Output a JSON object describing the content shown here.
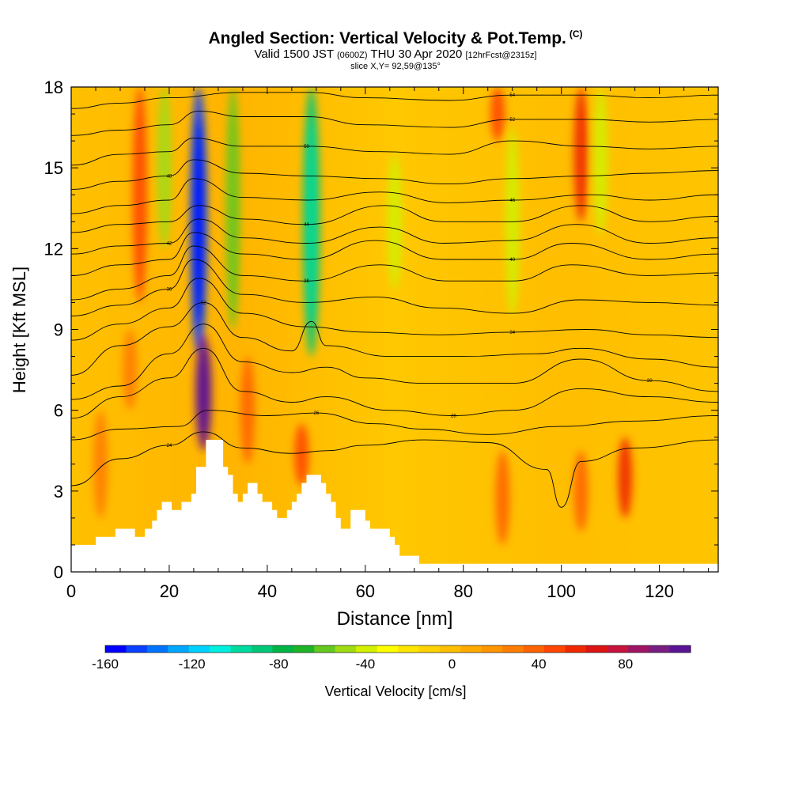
{
  "header": {
    "title": "Angled Section: Vertical Velocity & Pot.Temp.",
    "title_mark": "(C)",
    "valid_a": "Valid 1500 JST",
    "valid_b": "(0600Z)",
    "valid_c": "THU 30 Apr 2020",
    "valid_d": "[12hrFcst@2315z]",
    "slice": "slice X,Y= 92,59@135°"
  },
  "chart_data": {
    "type": "heatmap",
    "xlabel": "Distance [nm]",
    "ylabel": "Height [Kft MSL]",
    "xlim": [
      0,
      132
    ],
    "ylim": [
      0,
      18
    ],
    "x_ticks": [
      "0",
      "20",
      "40",
      "60",
      "80",
      "100",
      "120"
    ],
    "y_ticks": [
      "0",
      "3",
      "6",
      "9",
      "12",
      "15",
      "18"
    ],
    "colorbar": {
      "label": "Vertical Velocity [cm/s]",
      "min": -160,
      "max": 110,
      "tick_labels": [
        "-160",
        "-120",
        "-80",
        "-40",
        "0",
        "40",
        "80"
      ],
      "colors": [
        "#0000ff",
        "#0a40ff",
        "#0074ff",
        "#00a8ff",
        "#00d2ff",
        "#00f0e0",
        "#00dca0",
        "#00c878",
        "#00b446",
        "#1eb428",
        "#64c81e",
        "#a0dc14",
        "#d2f000",
        "#ffff00",
        "#ffe600",
        "#ffd200",
        "#ffbe00",
        "#ffaa00",
        "#ff9600",
        "#ff7d00",
        "#ff6400",
        "#ff4600",
        "#f02800",
        "#dc1414",
        "#c8143c",
        "#a01464",
        "#781e82",
        "#5a1496"
      ]
    },
    "terrain_kft": [
      [
        0,
        1.0
      ],
      [
        5,
        1.0
      ],
      [
        5,
        1.3
      ],
      [
        9,
        1.3
      ],
      [
        9,
        1.6
      ],
      [
        13,
        1.6
      ],
      [
        13,
        1.3
      ],
      [
        15,
        1.3
      ],
      [
        15,
        1.6
      ],
      [
        16.5,
        1.6
      ],
      [
        16.5,
        1.9
      ],
      [
        17.5,
        1.9
      ],
      [
        17.5,
        2.3
      ],
      [
        18.5,
        2.3
      ],
      [
        18.5,
        2.6
      ],
      [
        20.5,
        2.6
      ],
      [
        20.5,
        2.3
      ],
      [
        22.5,
        2.3
      ],
      [
        22.5,
        2.6
      ],
      [
        24.5,
        2.6
      ],
      [
        24.5,
        2.9
      ],
      [
        25.5,
        2.9
      ],
      [
        25.5,
        3.9
      ],
      [
        27.5,
        3.9
      ],
      [
        27.5,
        4.9
      ],
      [
        31,
        4.9
      ],
      [
        31,
        3.9
      ],
      [
        32,
        3.9
      ],
      [
        32,
        3.6
      ],
      [
        33,
        3.6
      ],
      [
        33,
        2.9
      ],
      [
        34,
        2.9
      ],
      [
        34,
        2.6
      ],
      [
        35,
        2.6
      ],
      [
        35,
        2.9
      ],
      [
        36,
        2.9
      ],
      [
        36,
        3.3
      ],
      [
        38,
        3.3
      ],
      [
        38,
        2.9
      ],
      [
        39,
        2.9
      ],
      [
        39,
        2.6
      ],
      [
        41,
        2.6
      ],
      [
        41,
        2.3
      ],
      [
        42,
        2.3
      ],
      [
        42,
        2.0
      ],
      [
        44,
        2.0
      ],
      [
        44,
        2.3
      ],
      [
        45,
        2.3
      ],
      [
        45,
        2.6
      ],
      [
        46,
        2.6
      ],
      [
        46,
        2.9
      ],
      [
        47,
        2.9
      ],
      [
        47,
        3.3
      ],
      [
        48,
        3.3
      ],
      [
        48,
        3.6
      ],
      [
        51,
        3.6
      ],
      [
        51,
        3.3
      ],
      [
        52,
        3.3
      ],
      [
        52,
        2.9
      ],
      [
        53,
        2.9
      ],
      [
        53,
        2.6
      ],
      [
        54,
        2.6
      ],
      [
        54,
        2.0
      ],
      [
        55,
        2.0
      ],
      [
        55,
        1.6
      ],
      [
        57,
        1.6
      ],
      [
        57,
        2.3
      ],
      [
        60,
        2.3
      ],
      [
        60,
        1.9
      ],
      [
        61,
        1.9
      ],
      [
        61,
        1.6
      ],
      [
        65,
        1.6
      ],
      [
        65,
        1.3
      ],
      [
        66,
        1.3
      ],
      [
        66,
        1.0
      ],
      [
        67,
        1.0
      ],
      [
        67,
        0.6
      ],
      [
        71,
        0.6
      ],
      [
        71,
        0.3
      ],
      [
        132,
        0.3
      ]
    ],
    "theta_contours": [
      {
        "label": "24",
        "points": [
          [
            0,
            3.2
          ],
          [
            10,
            4.2
          ],
          [
            20,
            4.7
          ],
          [
            27,
            5.2
          ],
          [
            35,
            4.6
          ],
          [
            45,
            4.4
          ],
          [
            52,
            4.5
          ],
          [
            60,
            4.7
          ],
          [
            72,
            4.9
          ],
          [
            85,
            4.8
          ],
          [
            97,
            3.8
          ],
          [
            100,
            2.4
          ],
          [
            104,
            4.1
          ],
          [
            115,
            4.6
          ],
          [
            132,
            4.9
          ]
        ]
      },
      {
        "label": "26",
        "points": [
          [
            0,
            4.9
          ],
          [
            10,
            5.3
          ],
          [
            22,
            5.4
          ],
          [
            28,
            6.0
          ],
          [
            40,
            5.8
          ],
          [
            50,
            5.9
          ],
          [
            62,
            5.5
          ],
          [
            72,
            5.3
          ],
          [
            85,
            5.1
          ],
          [
            100,
            5.4
          ],
          [
            115,
            5.6
          ],
          [
            132,
            5.8
          ]
        ]
      },
      {
        "label": "28",
        "points": [
          [
            0,
            5.7
          ],
          [
            10,
            6.5
          ],
          [
            20,
            7.2
          ],
          [
            27,
            8.3
          ],
          [
            35,
            6.7
          ],
          [
            45,
            6.3
          ],
          [
            52,
            6.5
          ],
          [
            65,
            6.0
          ],
          [
            78,
            5.8
          ],
          [
            90,
            6.0
          ],
          [
            104,
            6.8
          ],
          [
            118,
            6.5
          ],
          [
            132,
            6.3
          ]
        ]
      },
      {
        "label": "30",
        "points": [
          [
            0,
            6.4
          ],
          [
            10,
            6.9
          ],
          [
            20,
            8.1
          ],
          [
            27,
            9.2
          ],
          [
            35,
            7.8
          ],
          [
            45,
            7.4
          ],
          [
            52,
            7.6
          ],
          [
            60,
            7.2
          ],
          [
            72,
            7.0
          ],
          [
            90,
            7.0
          ],
          [
            104,
            7.9
          ],
          [
            118,
            7.1
          ],
          [
            132,
            6.7
          ]
        ]
      },
      {
        "label": "32",
        "points": [
          [
            0,
            7.3
          ],
          [
            10,
            8.4
          ],
          [
            20,
            9.1
          ],
          [
            27,
            10.0
          ],
          [
            35,
            8.7
          ],
          [
            45,
            8.2
          ],
          [
            49,
            9.3
          ],
          [
            52,
            8.4
          ],
          [
            65,
            8.0
          ],
          [
            80,
            8.0
          ],
          [
            95,
            8.1
          ],
          [
            104,
            8.3
          ],
          [
            118,
            7.9
          ],
          [
            132,
            7.6
          ]
        ]
      },
      {
        "label": "34",
        "points": [
          [
            0,
            8.6
          ],
          [
            10,
            9.2
          ],
          [
            20,
            9.8
          ],
          [
            26,
            10.9
          ],
          [
            35,
            9.6
          ],
          [
            48,
            9.1
          ],
          [
            60,
            8.9
          ],
          [
            75,
            8.8
          ],
          [
            90,
            8.9
          ],
          [
            105,
            9.0
          ],
          [
            118,
            8.8
          ],
          [
            132,
            8.7
          ]
        ]
      },
      {
        "label": "36",
        "points": [
          [
            0,
            9.5
          ],
          [
            10,
            9.9
          ],
          [
            20,
            10.5
          ],
          [
            25,
            11.6
          ],
          [
            35,
            10.3
          ],
          [
            48,
            10.0
          ],
          [
            62,
            10.2
          ],
          [
            75,
            9.8
          ],
          [
            90,
            9.6
          ],
          [
            104,
            10.1
          ],
          [
            118,
            10.0
          ],
          [
            132,
            9.9
          ]
        ]
      },
      {
        "label": "38",
        "points": [
          [
            0,
            10.1
          ],
          [
            10,
            10.5
          ],
          [
            20,
            11.0
          ],
          [
            25,
            12.1
          ],
          [
            35,
            11.0
          ],
          [
            48,
            10.8
          ],
          [
            63,
            11.4
          ],
          [
            77,
            10.8
          ],
          [
            90,
            10.8
          ],
          [
            102,
            11.4
          ],
          [
            118,
            11.0
          ],
          [
            132,
            11.1
          ]
        ]
      },
      {
        "label": "40",
        "points": [
          [
            0,
            11.0
          ],
          [
            10,
            11.4
          ],
          [
            20,
            11.6
          ],
          [
            25,
            12.6
          ],
          [
            35,
            11.8
          ],
          [
            48,
            11.6
          ],
          [
            62,
            12.3
          ],
          [
            76,
            11.6
          ],
          [
            90,
            11.6
          ],
          [
            102,
            12.2
          ],
          [
            118,
            11.6
          ],
          [
            132,
            11.8
          ]
        ]
      },
      {
        "label": "42",
        "points": [
          [
            0,
            11.8
          ],
          [
            10,
            12.1
          ],
          [
            20,
            12.2
          ],
          [
            26,
            13.1
          ],
          [
            35,
            12.4
          ],
          [
            48,
            12.2
          ],
          [
            63,
            12.8
          ],
          [
            76,
            12.2
          ],
          [
            90,
            12.3
          ],
          [
            103,
            12.9
          ],
          [
            118,
            12.2
          ],
          [
            132,
            12.4
          ]
        ]
      },
      {
        "label": "44",
        "points": [
          [
            0,
            12.6
          ],
          [
            10,
            12.9
          ],
          [
            20,
            13.0
          ],
          [
            26,
            13.6
          ],
          [
            35,
            13.1
          ],
          [
            48,
            12.9
          ],
          [
            64,
            13.6
          ],
          [
            76,
            13.0
          ],
          [
            90,
            13.0
          ],
          [
            104,
            13.6
          ],
          [
            118,
            13.0
          ],
          [
            132,
            13.2
          ]
        ]
      },
      {
        "label": "46",
        "points": [
          [
            0,
            13.3
          ],
          [
            10,
            13.6
          ],
          [
            20,
            13.8
          ],
          [
            25,
            14.6
          ],
          [
            35,
            13.9
          ],
          [
            48,
            13.8
          ],
          [
            63,
            14.1
          ],
          [
            77,
            13.7
          ],
          [
            90,
            13.8
          ],
          [
            106,
            14.0
          ],
          [
            118,
            13.8
          ],
          [
            132,
            14.0
          ]
        ]
      },
      {
        "label": "48",
        "points": [
          [
            0,
            14.2
          ],
          [
            10,
            14.5
          ],
          [
            20,
            14.7
          ],
          [
            25,
            15.3
          ],
          [
            35,
            14.8
          ],
          [
            48,
            14.7
          ],
          [
            63,
            14.6
          ],
          [
            77,
            14.4
          ],
          [
            90,
            14.6
          ],
          [
            105,
            14.7
          ],
          [
            118,
            14.8
          ],
          [
            132,
            14.9
          ]
        ]
      },
      {
        "label": "50",
        "points": [
          [
            0,
            15.1
          ],
          [
            10,
            15.5
          ],
          [
            20,
            15.6
          ],
          [
            25,
            16.1
          ],
          [
            35,
            15.8
          ],
          [
            48,
            15.8
          ],
          [
            63,
            15.6
          ],
          [
            77,
            15.5
          ],
          [
            90,
            16.0
          ],
          [
            105,
            15.8
          ],
          [
            118,
            15.7
          ],
          [
            132,
            15.8
          ]
        ]
      },
      {
        "label": "52",
        "points": [
          [
            0,
            16.2
          ],
          [
            10,
            16.4
          ],
          [
            20,
            16.6
          ],
          [
            26,
            17.1
          ],
          [
            35,
            16.9
          ],
          [
            48,
            16.9
          ],
          [
            60,
            16.6
          ],
          [
            77,
            16.5
          ],
          [
            90,
            16.8
          ],
          [
            105,
            16.8
          ],
          [
            118,
            16.7
          ],
          [
            132,
            16.8
          ]
        ]
      },
      {
        "label": "54",
        "points": [
          [
            0,
            17.2
          ],
          [
            10,
            17.4
          ],
          [
            20,
            17.6
          ],
          [
            35,
            17.8
          ],
          [
            48,
            17.8
          ],
          [
            60,
            17.6
          ],
          [
            77,
            17.5
          ],
          [
            90,
            17.7
          ],
          [
            105,
            17.7
          ],
          [
            118,
            17.6
          ],
          [
            132,
            17.7
          ]
        ]
      }
    ],
    "velocity_features": [
      {
        "x": 26,
        "y_from": 8.0,
        "y_to": 18,
        "value": -150
      },
      {
        "x": 33,
        "y_from": 9.0,
        "y_to": 18,
        "value": -60
      },
      {
        "x": 19,
        "y_from": 12.0,
        "y_to": 18,
        "value": -50
      },
      {
        "x": 49,
        "y_from": 8.0,
        "y_to": 18,
        "value": -90
      },
      {
        "x": 66,
        "y_from": 10.5,
        "y_to": 15.5,
        "value": -35
      },
      {
        "x": 90,
        "y_from": 9.5,
        "y_to": 16.5,
        "value": -40
      },
      {
        "x": 108,
        "y_from": 12.5,
        "y_to": 18,
        "value": -35
      },
      {
        "x": 27,
        "y_from": 4.5,
        "y_to": 8.8,
        "value": 100
      },
      {
        "x": 14,
        "y_from": 10.0,
        "y_to": 18,
        "value": 45
      },
      {
        "x": 104,
        "y_from": 13.0,
        "y_to": 18,
        "value": 60
      },
      {
        "x": 87,
        "y_from": 16.0,
        "y_to": 18,
        "value": 45
      },
      {
        "x": 47,
        "y_from": 3.2,
        "y_to": 5.5,
        "value": 50
      },
      {
        "x": 36,
        "y_from": 4.0,
        "y_to": 8.0,
        "value": 35
      },
      {
        "x": 88,
        "y_from": 1.0,
        "y_to": 4.5,
        "value": 40
      },
      {
        "x": 113,
        "y_from": 2.0,
        "y_to": 5.0,
        "value": 55
      },
      {
        "x": 104,
        "y_from": 1.5,
        "y_to": 4.5,
        "value": 40
      },
      {
        "x": 12,
        "y_from": 6.0,
        "y_to": 9.0,
        "value": 30
      },
      {
        "x": 6,
        "y_from": 2.0,
        "y_to": 6.0,
        "value": 30
      }
    ]
  }
}
